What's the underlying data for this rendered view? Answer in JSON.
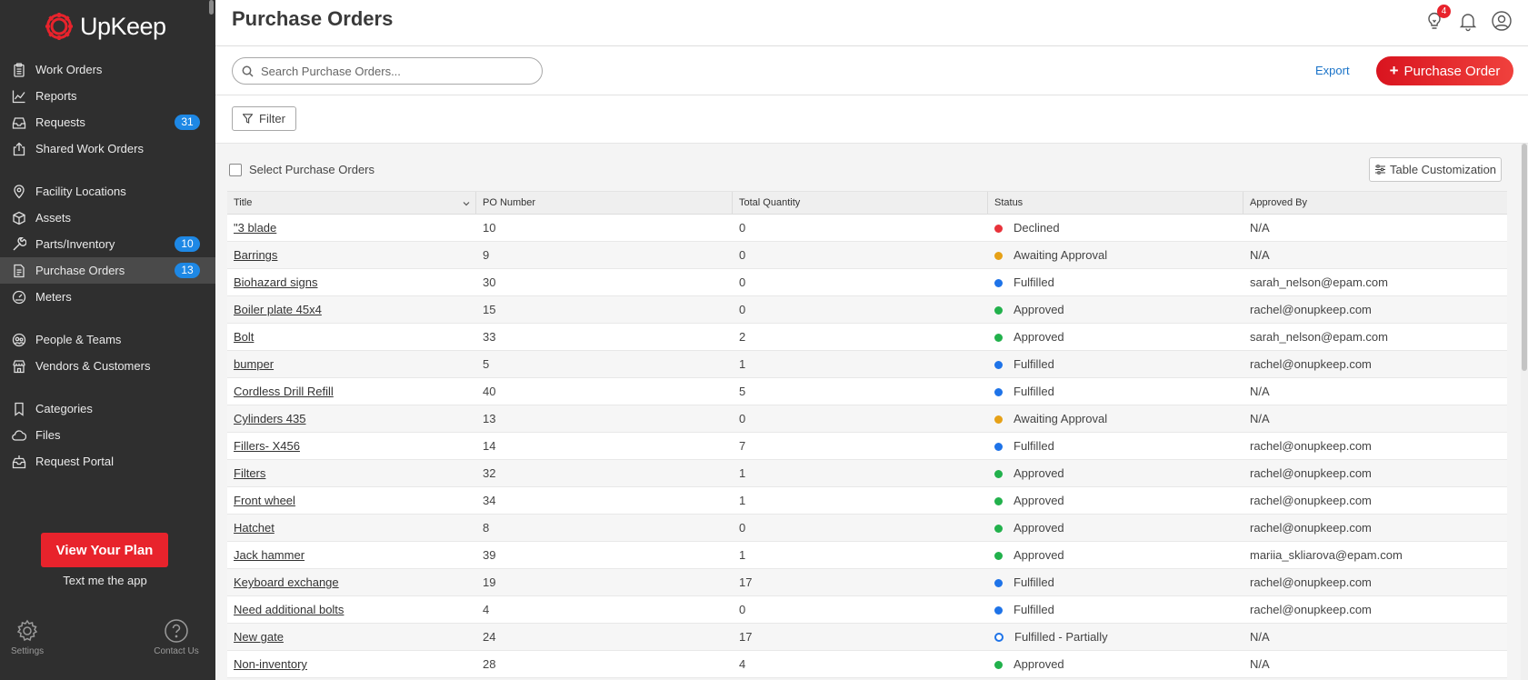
{
  "app": {
    "brand": "UpKeep"
  },
  "sidebar": {
    "items": [
      {
        "label": "Work Orders",
        "icon": "clipboard-icon"
      },
      {
        "label": "Reports",
        "icon": "chart-icon"
      },
      {
        "label": "Requests",
        "icon": "inbox-icon",
        "badge": "31"
      },
      {
        "label": "Shared Work Orders",
        "icon": "share-icon"
      },
      {
        "label": "Facility Locations",
        "icon": "location-pin-icon"
      },
      {
        "label": "Assets",
        "icon": "cube-icon"
      },
      {
        "label": "Parts/Inventory",
        "icon": "wrench-icon",
        "badge": "10"
      },
      {
        "label": "Purchase Orders",
        "icon": "document-icon",
        "badge": "13"
      },
      {
        "label": "Meters",
        "icon": "gauge-icon"
      },
      {
        "label": "People & Teams",
        "icon": "people-icon"
      },
      {
        "label": "Vendors & Customers",
        "icon": "store-icon"
      },
      {
        "label": "Categories",
        "icon": "bookmark-icon"
      },
      {
        "label": "Files",
        "icon": "cloud-icon"
      },
      {
        "label": "Request Portal",
        "icon": "portal-icon"
      }
    ],
    "plan_button": "View Your Plan",
    "text_app": "Text me the app",
    "settings_label": "Settings",
    "contact_label": "Contact Us"
  },
  "header": {
    "title": "Purchase Orders",
    "notification_count": "4"
  },
  "toolbar": {
    "search_placeholder": "Search Purchase Orders...",
    "export_label": "Export",
    "add_label": "Purchase Order"
  },
  "filter": {
    "label": "Filter"
  },
  "list": {
    "select_all_label": "Select Purchase Orders",
    "customize_label": "Table Customization",
    "columns": [
      "Title",
      "PO Number",
      "Total Quantity",
      "Status",
      "Approved By"
    ],
    "status_colors": {
      "Declined": "#e8323a",
      "Awaiting Approval": "#e6a117",
      "Fulfilled": "#1e73e8",
      "Approved": "#22b14c",
      "Fulfilled - Partially": "#1e73e8"
    },
    "rows": [
      {
        "title": "\"3 blade",
        "po": "10",
        "qty": "0",
        "status": "Declined",
        "approved_by": "N/A"
      },
      {
        "title": "Barrings",
        "po": "9",
        "qty": "0",
        "status": "Awaiting Approval",
        "approved_by": "N/A"
      },
      {
        "title": "Biohazard signs",
        "po": "30",
        "qty": "0",
        "status": "Fulfilled",
        "approved_by": "sarah_nelson@epam.com"
      },
      {
        "title": "Boiler plate 45x4",
        "po": "15",
        "qty": "0",
        "status": "Approved",
        "approved_by": "rachel@onupkeep.com"
      },
      {
        "title": "Bolt",
        "po": "33",
        "qty": "2",
        "status": "Approved",
        "approved_by": "sarah_nelson@epam.com"
      },
      {
        "title": "bumper",
        "po": "5",
        "qty": "1",
        "status": "Fulfilled",
        "approved_by": "rachel@onupkeep.com"
      },
      {
        "title": "Cordless Drill Refill",
        "po": "40",
        "qty": "5",
        "status": "Fulfilled",
        "approved_by": "N/A"
      },
      {
        "title": "Cylinders 435",
        "po": "13",
        "qty": "0",
        "status": "Awaiting Approval",
        "approved_by": "N/A"
      },
      {
        "title": "Fillers- X456",
        "po": "14",
        "qty": "7",
        "status": "Fulfilled",
        "approved_by": "rachel@onupkeep.com"
      },
      {
        "title": "Filters",
        "po": "32",
        "qty": "1",
        "status": "Approved",
        "approved_by": "rachel@onupkeep.com"
      },
      {
        "title": "Front wheel",
        "po": "34",
        "qty": "1",
        "status": "Approved",
        "approved_by": "rachel@onupkeep.com"
      },
      {
        "title": "Hatchet",
        "po": "8",
        "qty": "0",
        "status": "Approved",
        "approved_by": "rachel@onupkeep.com"
      },
      {
        "title": "Jack hammer",
        "po": "39",
        "qty": "1",
        "status": "Approved",
        "approved_by": "mariia_skliarova@epam.com"
      },
      {
        "title": "Keyboard exchange",
        "po": "19",
        "qty": "17",
        "status": "Fulfilled",
        "approved_by": "rachel@onupkeep.com"
      },
      {
        "title": "Need additional bolts",
        "po": "4",
        "qty": "0",
        "status": "Fulfilled",
        "approved_by": "rachel@onupkeep.com"
      },
      {
        "title": "New gate",
        "po": "24",
        "qty": "17",
        "status": "Fulfilled - Partially",
        "approved_by": "N/A"
      },
      {
        "title": "Non-inventory",
        "po": "28",
        "qty": "4",
        "status": "Approved",
        "approved_by": "N/A"
      }
    ]
  }
}
